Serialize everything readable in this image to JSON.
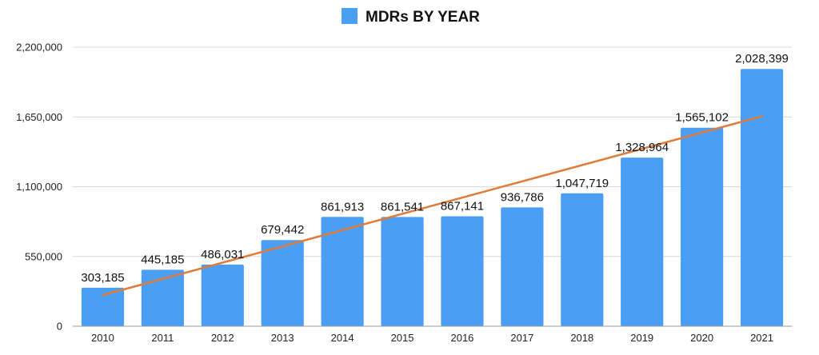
{
  "chart_data": {
    "type": "bar",
    "title": "",
    "xlabel": "",
    "ylabel": "",
    "categories": [
      "2010",
      "2011",
      "2012",
      "2013",
      "2014",
      "2015",
      "2016",
      "2017",
      "2018",
      "2019",
      "2020",
      "2021"
    ],
    "series": [
      {
        "name": "MDRs BY YEAR",
        "values": [
          303185,
          445185,
          486031,
          679442,
          861913,
          861541,
          867141,
          936786,
          1047719,
          1328964,
          1565102,
          2028399
        ]
      }
    ],
    "data_labels": [
      "303,185",
      "445,185",
      "486,031",
      "679,442",
      "861,913",
      "861,541",
      "867,141",
      "936,786",
      "1,047,719",
      "1,328,964",
      "1,565,102",
      "2,028,399"
    ],
    "y_ticks": [
      0,
      550000,
      1100000,
      1650000,
      2200000
    ],
    "y_tick_labels": [
      "0",
      "550,000",
      "1,100,000",
      "1,650,000",
      "2,200,000"
    ],
    "ylim": [
      0,
      2200000
    ],
    "trendline": {
      "type": "linear",
      "start_value": 245000,
      "end_value": 1655000
    },
    "grid": true,
    "legend": {
      "position": "top"
    },
    "colors": {
      "bar": "#4a9ff5",
      "trendline": "#e07b39",
      "gridline": "#d9d9d9",
      "axis": "#999999"
    }
  }
}
